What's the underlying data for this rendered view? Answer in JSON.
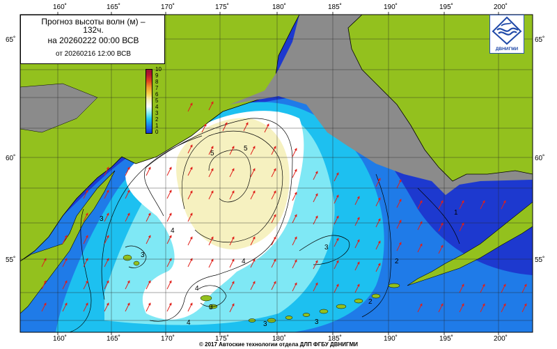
{
  "title": {
    "line1": "Прогноз высоты волн (м) –",
    "line1b": "132ч.",
    "line2": "на 20260222 00:00 ВСВ",
    "line3": "от 20260216 12:00 ВСВ"
  },
  "logo": {
    "text": "ДВНИГМИ",
    "icon": "dvnigmi-wave-logo-icon"
  },
  "colorbar": {
    "labels": [
      "10",
      "9",
      "8",
      "7",
      "6",
      "5",
      "4",
      "3",
      "2",
      "1",
      "0"
    ]
  },
  "axes": {
    "lon_labels": [
      "160˚",
      "165˚",
      "170˚",
      "175˚",
      "180˚",
      "185˚",
      "190˚",
      "195˚",
      "200˚"
    ],
    "lat_labels": [
      "65˚",
      "60˚",
      "55˚"
    ]
  },
  "contour_labels": {
    "c1": "5",
    "c2": "5",
    "c3": "4",
    "c4": "4",
    "c5": "4",
    "c6": "3",
    "c7": "3",
    "c8": "3",
    "c9": "3",
    "c10": "3",
    "c11": "3",
    "c12": "2",
    "c13": "2",
    "c14": "1",
    "c15": "4"
  },
  "colors": {
    "land": "#93c11e",
    "ice": "#8b8b8b",
    "sea_deep": "#1a2bc8",
    "sea_high": "#f6f1c0",
    "arrow": "#e0201a"
  },
  "copyright": "© 2017 Автоские технологии отдела ДЛП ФГБУ ДВНИГМИ"
}
